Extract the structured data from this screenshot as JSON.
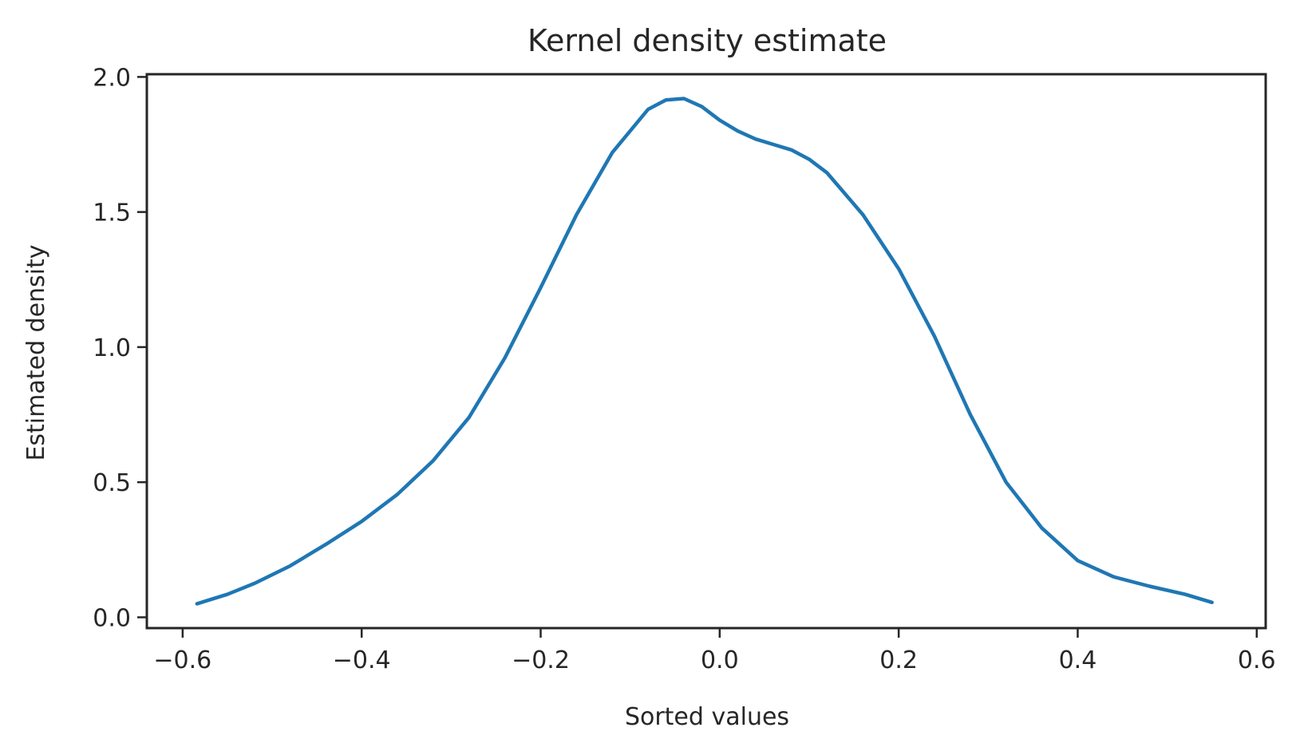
{
  "chart_data": {
    "type": "line",
    "title": "Kernel density estimate",
    "xlabel": "Sorted values",
    "ylabel": "Estimated density",
    "xlim": [
      -0.64,
      0.61
    ],
    "ylim": [
      -0.04,
      2.01
    ],
    "xticks": [
      -0.6,
      -0.4,
      -0.2,
      0.0,
      0.2,
      0.4,
      0.6
    ],
    "xtick_labels": [
      "−0.6",
      "−0.4",
      "−0.2",
      "0.0",
      "0.2",
      "0.4",
      "0.6"
    ],
    "yticks": [
      0.0,
      0.5,
      1.0,
      1.5,
      2.0
    ],
    "ytick_labels": [
      "0.0",
      "0.5",
      "1.0",
      "1.5",
      "2.0"
    ],
    "grid": false,
    "series": [
      {
        "color": "#1f77b4",
        "x": [
          -0.584,
          -0.55,
          -0.52,
          -0.48,
          -0.44,
          -0.4,
          -0.36,
          -0.32,
          -0.28,
          -0.24,
          -0.2,
          -0.16,
          -0.12,
          -0.08,
          -0.06,
          -0.04,
          -0.02,
          0.0,
          0.02,
          0.04,
          0.06,
          0.08,
          0.1,
          0.12,
          0.16,
          0.2,
          0.24,
          0.28,
          0.32,
          0.36,
          0.4,
          0.44,
          0.48,
          0.52,
          0.55
        ],
        "values": [
          0.05,
          0.085,
          0.125,
          0.19,
          0.27,
          0.355,
          0.455,
          0.58,
          0.74,
          0.96,
          1.22,
          1.49,
          1.72,
          1.88,
          1.915,
          1.92,
          1.89,
          1.84,
          1.8,
          1.77,
          1.75,
          1.73,
          1.695,
          1.645,
          1.49,
          1.29,
          1.04,
          0.75,
          0.5,
          0.33,
          0.21,
          0.15,
          0.115,
          0.085,
          0.055
        ]
      }
    ]
  }
}
